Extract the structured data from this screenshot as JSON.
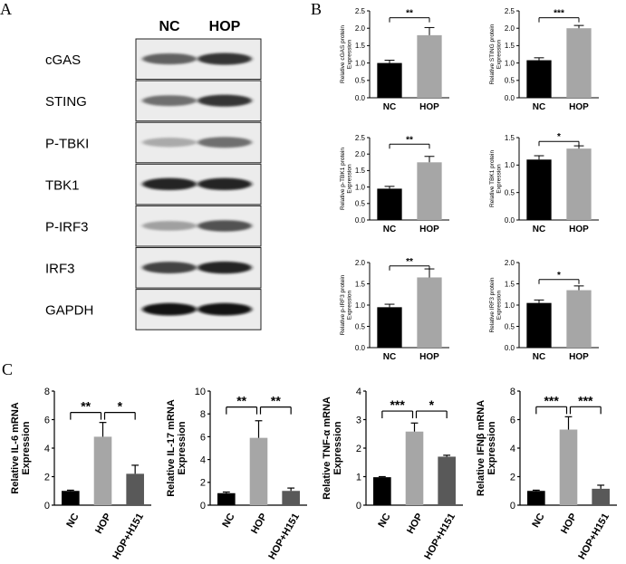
{
  "panels": {
    "a": "A",
    "b": "B",
    "c": "C"
  },
  "blot": {
    "columns": [
      "NC",
      "HOP"
    ],
    "rows": [
      {
        "label": "cGAS",
        "intensity": [
          0.7,
          0.85
        ]
      },
      {
        "label": "STING",
        "intensity": [
          0.65,
          0.85
        ]
      },
      {
        "label": "P-TBKI",
        "intensity": [
          0.4,
          0.65
        ]
      },
      {
        "label": "TBK1",
        "intensity": [
          0.9,
          0.9
        ]
      },
      {
        "label": "P-IRF3",
        "intensity": [
          0.45,
          0.75
        ]
      },
      {
        "label": "IRF3",
        "intensity": [
          0.8,
          0.9
        ]
      },
      {
        "label": "GAPDH",
        "intensity": [
          0.95,
          0.95
        ]
      }
    ]
  },
  "chart_data": [
    {
      "id": "cgas",
      "type": "bar",
      "categories": [
        "NC",
        "HOP"
      ],
      "values": [
        1.0,
        1.8
      ],
      "errors": [
        0.08,
        0.22
      ],
      "colors": [
        "#000000",
        "#a6a6a6"
      ],
      "ylabel": "Relative cGAS protein\nExpression",
      "ylim": [
        0,
        2.5
      ],
      "ticks": [
        "0.0",
        "0.5",
        "1.0",
        "1.5",
        "2.0",
        "2.5"
      ],
      "sig": [
        {
          "from": 0,
          "to": 1,
          "label": "**",
          "y": 2.3
        }
      ]
    },
    {
      "id": "sting",
      "type": "bar",
      "categories": [
        "NC",
        "HOP"
      ],
      "values": [
        1.08,
        2.0
      ],
      "errors": [
        0.07,
        0.08
      ],
      "colors": [
        "#000000",
        "#a6a6a6"
      ],
      "ylabel": "Relative STING protein\nExpression",
      "ylim": [
        0,
        2.5
      ],
      "ticks": [
        "0.0",
        "0.5",
        "1.0",
        "1.5",
        "2.0",
        "2.5"
      ],
      "sig": [
        {
          "from": 0,
          "to": 1,
          "label": "***",
          "y": 2.3
        }
      ]
    },
    {
      "id": "ptbk1",
      "type": "bar",
      "categories": [
        "NC",
        "HOP"
      ],
      "values": [
        0.95,
        1.75
      ],
      "errors": [
        0.07,
        0.18
      ],
      "colors": [
        "#000000",
        "#a6a6a6"
      ],
      "ylabel": "Relative p-TBK1 protein\nExpression",
      "ylim": [
        0,
        2.5
      ],
      "ticks": [
        "0.0",
        "0.5",
        "1.0",
        "1.5",
        "2.0",
        "2.5"
      ],
      "sig": [
        {
          "from": 0,
          "to": 1,
          "label": "**",
          "y": 2.3
        }
      ]
    },
    {
      "id": "tbk1",
      "type": "bar",
      "categories": [
        "NC",
        "HOP"
      ],
      "values": [
        1.1,
        1.3
      ],
      "errors": [
        0.07,
        0.05
      ],
      "colors": [
        "#000000",
        "#a6a6a6"
      ],
      "ylabel": "Relative TBK1 protein\nExpression",
      "ylim": [
        0,
        1.5
      ],
      "ticks": [
        "0.0",
        "0.5",
        "1.0",
        "1.5"
      ],
      "sig": [
        {
          "from": 0,
          "to": 1,
          "label": "*",
          "y": 1.43
        }
      ]
    },
    {
      "id": "pirf3",
      "type": "bar",
      "categories": [
        "NC",
        "HOP"
      ],
      "values": [
        0.95,
        1.65
      ],
      "errors": [
        0.07,
        0.2
      ],
      "colors": [
        "#000000",
        "#a6a6a6"
      ],
      "ylabel": "Relative p-IRF3 protein\nExpression",
      "ylim": [
        0,
        2.0
      ],
      "ticks": [
        "0.0",
        "0.5",
        "1.0",
        "1.5",
        "2.0"
      ],
      "sig": [
        {
          "from": 0,
          "to": 1,
          "label": "**",
          "y": 1.92
        }
      ]
    },
    {
      "id": "irf3",
      "type": "bar",
      "categories": [
        "NC",
        "HOP"
      ],
      "values": [
        1.05,
        1.35
      ],
      "errors": [
        0.07,
        0.1
      ],
      "colors": [
        "#000000",
        "#a6a6a6"
      ],
      "ylabel": "Relative IRF3 protein\nExpression",
      "ylim": [
        0,
        2.0
      ],
      "ticks": [
        "0.0",
        "0.5",
        "1.0",
        "1.5",
        "2.0"
      ],
      "sig": [
        {
          "from": 0,
          "to": 1,
          "label": "*",
          "y": 1.6
        }
      ]
    },
    {
      "id": "il6",
      "type": "bar",
      "categories": [
        "NC",
        "HOP",
        "HOP+H151"
      ],
      "values": [
        1.0,
        4.8,
        2.2
      ],
      "errors": [
        0.05,
        1.0,
        0.6
      ],
      "colors": [
        "#000000",
        "#a6a6a6",
        "#595959"
      ],
      "ylabel": "Relative IL-6 mRNA\nExpression",
      "ylim": [
        0,
        8
      ],
      "ticks": [
        "0",
        "2",
        "4",
        "6",
        "8"
      ],
      "sig": [
        {
          "from": 0,
          "to": 1,
          "label": "**",
          "y": 6.5
        },
        {
          "from": 1,
          "to": 2,
          "label": "*",
          "y": 6.5
        }
      ]
    },
    {
      "id": "il17",
      "type": "bar",
      "categories": [
        "NC",
        "HOP",
        "HOP+H151"
      ],
      "values": [
        1.05,
        5.9,
        1.25
      ],
      "errors": [
        0.1,
        1.5,
        0.25
      ],
      "colors": [
        "#000000",
        "#a6a6a6",
        "#595959"
      ],
      "ylabel": "Relative IL-17 mRNA\nExpression",
      "ylim": [
        0,
        10
      ],
      "ticks": [
        "0",
        "2",
        "4",
        "6",
        "8",
        "10"
      ],
      "sig": [
        {
          "from": 0,
          "to": 1,
          "label": "**",
          "y": 8.6
        },
        {
          "from": 1,
          "to": 2,
          "label": "**",
          "y": 8.6
        }
      ]
    },
    {
      "id": "tnfa",
      "type": "bar",
      "categories": [
        "NC",
        "HOP",
        "HOP+H151"
      ],
      "values": [
        0.98,
        2.58,
        1.7
      ],
      "errors": [
        0.02,
        0.3,
        0.05
      ],
      "colors": [
        "#000000",
        "#a6a6a6",
        "#595959"
      ],
      "ylabel": "Relative TNF-α mRNA\nExpression",
      "ylim": [
        0,
        4
      ],
      "ticks": [
        "0",
        "1",
        "2",
        "3",
        "4"
      ],
      "sig": [
        {
          "from": 0,
          "to": 1,
          "label": "***",
          "y": 3.3
        },
        {
          "from": 1,
          "to": 2,
          "label": "*",
          "y": 3.3
        }
      ]
    },
    {
      "id": "ifnb",
      "type": "bar",
      "categories": [
        "NC",
        "HOP",
        "HOP+H151"
      ],
      "values": [
        1.0,
        5.3,
        1.15
      ],
      "errors": [
        0.05,
        0.9,
        0.25
      ],
      "colors": [
        "#000000",
        "#a6a6a6",
        "#595959"
      ],
      "ylabel": "Relative IFNβ mRNA\nExpression",
      "ylim": [
        0,
        8
      ],
      "ticks": [
        "0",
        "2",
        "4",
        "6",
        "8"
      ],
      "sig": [
        {
          "from": 0,
          "to": 1,
          "label": "***",
          "y": 6.9
        },
        {
          "from": 1,
          "to": 2,
          "label": "***",
          "y": 6.9
        }
      ]
    }
  ]
}
